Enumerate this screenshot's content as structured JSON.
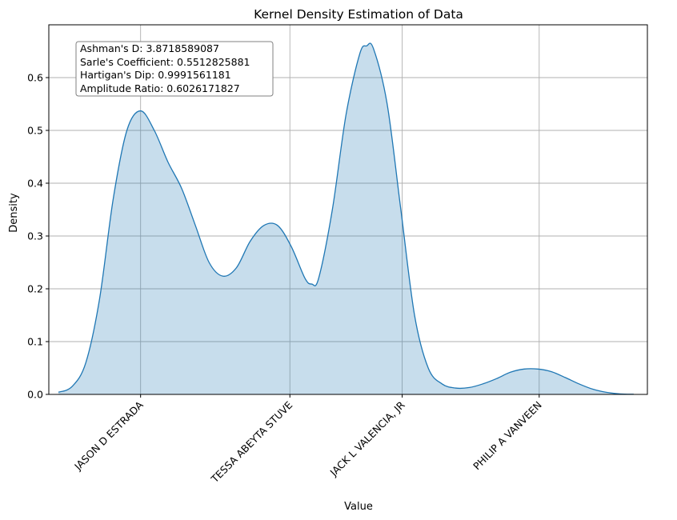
{
  "chart_data": {
    "type": "area",
    "title": "Kernel Density Estimation of Data",
    "xlabel": "Value",
    "ylabel": "Density",
    "ylim": [
      0,
      0.7
    ],
    "yticks": [
      0.0,
      0.1,
      0.2,
      0.3,
      0.4,
      0.5,
      0.6
    ],
    "ytick_labels": [
      "0.0",
      "0.1",
      "0.2",
      "0.3",
      "0.4",
      "0.5",
      "0.6"
    ],
    "grid": true,
    "xlim": [
      -0.67,
      3.7
    ],
    "categories": [
      "JASON D ESTRADA",
      "TESSA ABEYTA STUVE",
      "JACK L VALENCIA, JR",
      "PHILIP A VANVEEN"
    ],
    "category_positions": [
      0,
      1.09,
      1.91,
      2.91
    ],
    "series": [
      {
        "color": "#1f77b4",
        "fill_opacity": 0.25,
        "points": [
          [
            -0.6,
            0.004
          ],
          [
            -0.5,
            0.015
          ],
          [
            -0.4,
            0.06
          ],
          [
            -0.3,
            0.18
          ],
          [
            -0.2,
            0.37
          ],
          [
            -0.1,
            0.5
          ],
          [
            0.0,
            0.537
          ],
          [
            0.1,
            0.5
          ],
          [
            0.2,
            0.44
          ],
          [
            0.3,
            0.39
          ],
          [
            0.4,
            0.32
          ],
          [
            0.5,
            0.25
          ],
          [
            0.6,
            0.224
          ],
          [
            0.7,
            0.24
          ],
          [
            0.8,
            0.29
          ],
          [
            0.9,
            0.32
          ],
          [
            1.0,
            0.32
          ],
          [
            1.1,
            0.28
          ],
          [
            1.2,
            0.22
          ],
          [
            1.25,
            0.209
          ],
          [
            1.3,
            0.22
          ],
          [
            1.4,
            0.35
          ],
          [
            1.5,
            0.53
          ],
          [
            1.6,
            0.645
          ],
          [
            1.65,
            0.66
          ],
          [
            1.7,
            0.655
          ],
          [
            1.8,
            0.55
          ],
          [
            1.9,
            0.35
          ],
          [
            2.0,
            0.15
          ],
          [
            2.1,
            0.05
          ],
          [
            2.2,
            0.02
          ],
          [
            2.3,
            0.012
          ],
          [
            2.4,
            0.013
          ],
          [
            2.5,
            0.02
          ],
          [
            2.6,
            0.03
          ],
          [
            2.7,
            0.042
          ],
          [
            2.8,
            0.048
          ],
          [
            2.9,
            0.048
          ],
          [
            3.0,
            0.043
          ],
          [
            3.1,
            0.032
          ],
          [
            3.2,
            0.02
          ],
          [
            3.3,
            0.01
          ],
          [
            3.4,
            0.004
          ],
          [
            3.5,
            0.001
          ],
          [
            3.6,
            0.0003
          ]
        ]
      }
    ],
    "annotation": {
      "lines": [
        "Ashman's D: 3.8718589087",
        "Sarle's Coefficient: 0.5512825881",
        "Hartigan's Dip: 0.9991561181",
        "Amplitude Ratio: 0.6026171827"
      ],
      "placement": "top-left"
    }
  }
}
